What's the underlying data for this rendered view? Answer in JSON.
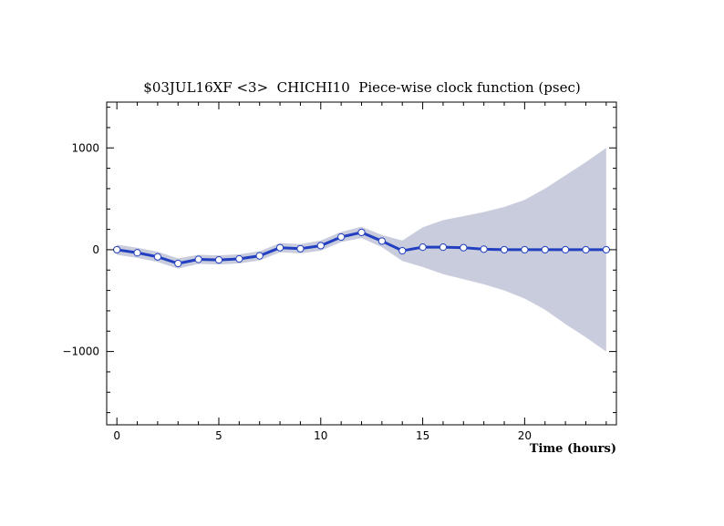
{
  "chart_data": {
    "type": "line",
    "title": "$03JUL16XF <3>  CHICHI10  Piece-wise clock function (psec)",
    "xlabel": "Time (hours)",
    "ylabel": "",
    "xlim": [
      -0.5,
      24.5
    ],
    "ylim": [
      -1720,
      1450
    ],
    "x_ticks": [
      0,
      5,
      10,
      15,
      20
    ],
    "x_tick_labels": [
      "0",
      "5",
      "10",
      "15",
      "20"
    ],
    "y_ticks": [
      1000,
      0,
      -1000
    ],
    "y_tick_labels": [
      "1000",
      "0",
      "−1000"
    ],
    "grid": false,
    "colors": {
      "line": "#2340c0",
      "band": "#c8ccdc",
      "marker_fill": "#ffffff",
      "marker_stroke": "#2340c0"
    },
    "series": [
      {
        "x": [
          0,
          1,
          2,
          3,
          4,
          5,
          6,
          7,
          8,
          9,
          10,
          11,
          12,
          13,
          14,
          15,
          16,
          17,
          18,
          19,
          20,
          21,
          22,
          23,
          24
        ],
        "values": [
          0,
          -30,
          -70,
          -135,
          -95,
          -100,
          -90,
          -60,
          20,
          10,
          40,
          125,
          170,
          85,
          -10,
          25,
          25,
          20,
          5,
          0,
          0,
          0,
          0,
          0,
          0
        ]
      }
    ],
    "band": {
      "x": [
        0,
        1,
        2,
        3,
        4,
        5,
        6,
        7,
        8,
        9,
        10,
        11,
        12,
        13,
        14,
        15,
        16,
        17,
        18,
        19,
        20,
        21,
        22,
        23,
        24
      ],
      "upper": [
        50,
        20,
        -20,
        -85,
        -50,
        -55,
        -45,
        -15,
        65,
        55,
        90,
        175,
        225,
        145,
        90,
        220,
        290,
        330,
        370,
        420,
        490,
        600,
        730,
        860,
        1000
      ],
      "lower": [
        -50,
        -80,
        -120,
        -185,
        -140,
        -145,
        -135,
        -105,
        -25,
        -35,
        -10,
        75,
        115,
        25,
        -110,
        -170,
        -240,
        -290,
        -340,
        -400,
        -480,
        -590,
        -730,
        -860,
        -1000
      ]
    }
  }
}
